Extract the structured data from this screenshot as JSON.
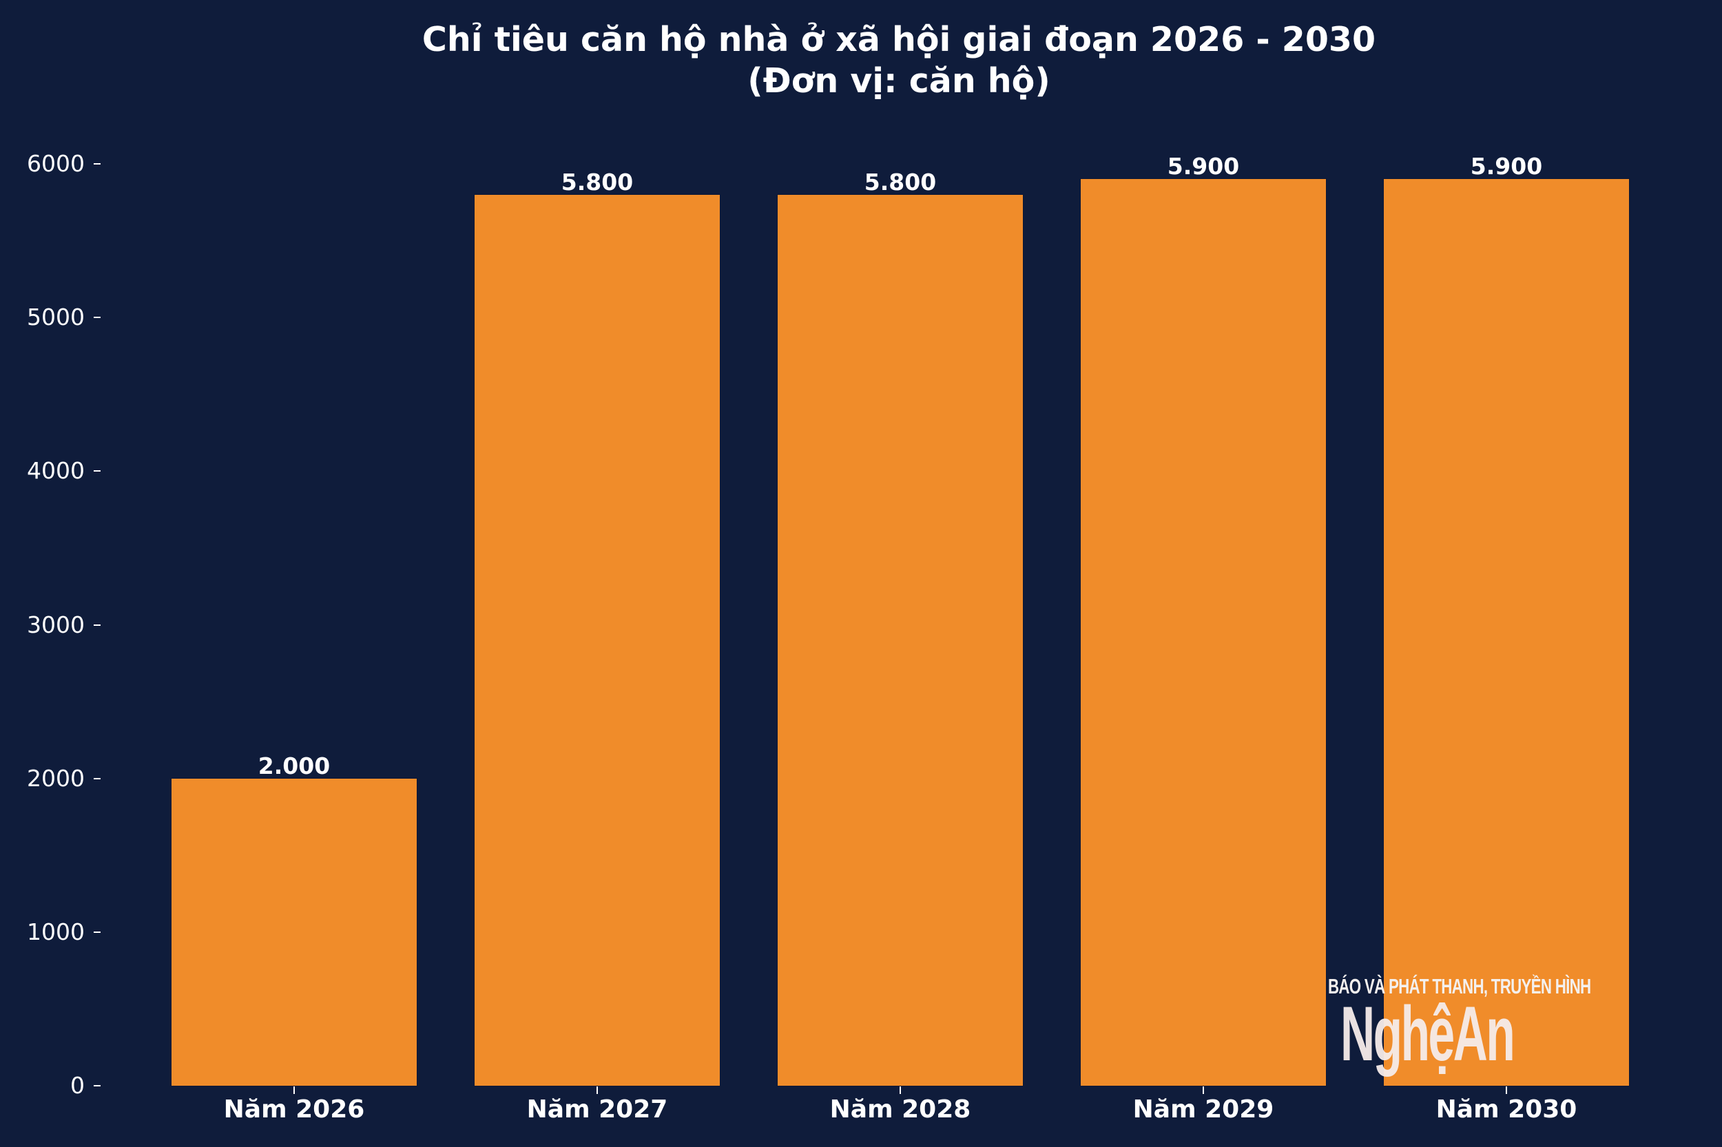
{
  "chart_data": {
    "type": "bar",
    "title": "Chỉ tiêu căn hộ nhà ở xã hội giai đoạn 2026 - 2030",
    "subtitle": "(Đơn vị: căn hộ)",
    "xlabel": "",
    "ylabel": "",
    "categories": [
      "Năm 2026",
      "Năm 2027",
      "Năm 2028",
      "Năm 2029",
      "Năm 2030"
    ],
    "values": [
      2000,
      5800,
      5800,
      5900,
      5900
    ],
    "value_labels": [
      "2.000",
      "5.800",
      "5.800",
      "5.900",
      "5.900"
    ],
    "ylim": [
      0,
      6000
    ],
    "yticks": [
      0,
      1000,
      2000,
      3000,
      4000,
      5000,
      6000
    ],
    "ytick_labels": [
      "0",
      "1000",
      "2000",
      "3000",
      "4000",
      "5000",
      "6000"
    ],
    "grid": false,
    "legend": null,
    "colors": {
      "bar": "#f08c2a",
      "background": "#0f1c3b",
      "text": "#ffffff"
    }
  },
  "watermark": {
    "line1": "BÁO VÀ PHÁT THANH, TRUYỀN HÌNH",
    "line2": "NghệAn"
  }
}
